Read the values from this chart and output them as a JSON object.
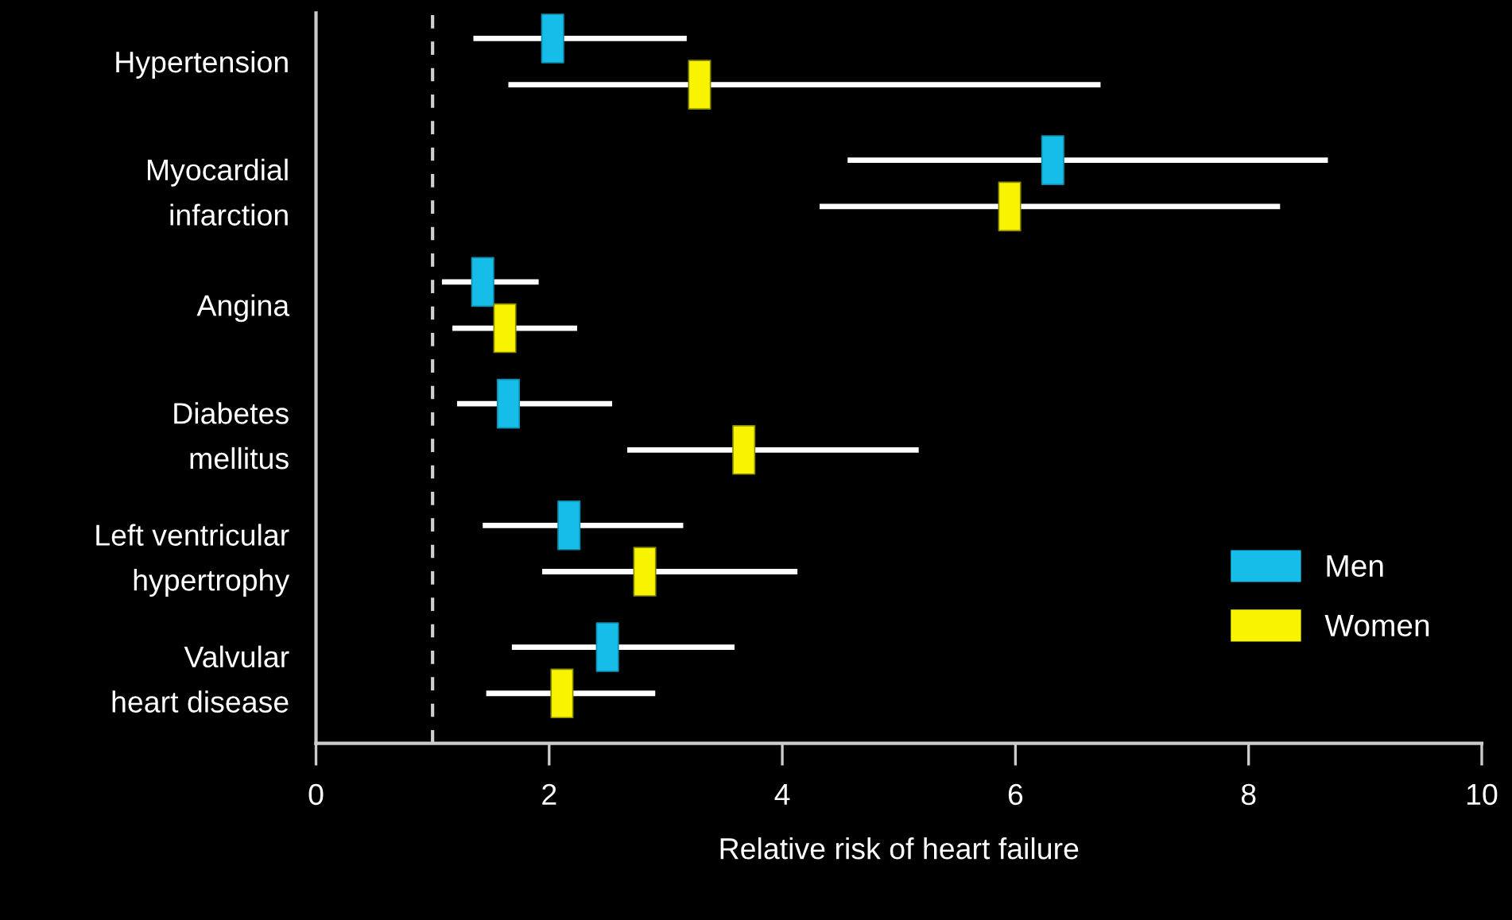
{
  "chart_data": {
    "type": "scatter",
    "orientation": "horizontal",
    "xlabel": "Relative risk of heart failure",
    "categories": [
      "Hypertension",
      "Myocardial\ninfarction",
      "Angina",
      "Diabetes\nmellitus",
      "Left ventricular\nhypertrophy",
      "Valvular\nheart disease"
    ],
    "series": [
      {
        "name": "Men",
        "color": "#16bde9",
        "values": [
          2.03,
          6.32,
          1.43,
          1.65,
          2.17,
          2.5
        ],
        "errors": [
          [
            1.35,
            3.18
          ],
          [
            4.56,
            8.68
          ],
          [
            1.08,
            1.91
          ],
          [
            1.21,
            2.54
          ],
          [
            1.43,
            3.15
          ],
          [
            1.68,
            3.59
          ]
        ]
      },
      {
        "name": "Women",
        "color": "#f8f400",
        "values": [
          3.29,
          5.95,
          1.62,
          3.67,
          2.82,
          2.11
        ],
        "errors": [
          [
            1.65,
            6.73
          ],
          [
            4.32,
            8.27
          ],
          [
            1.17,
            2.24
          ],
          [
            2.67,
            5.17
          ],
          [
            1.94,
            4.13
          ],
          [
            1.46,
            2.91
          ]
        ]
      }
    ],
    "xlim": [
      0,
      10
    ],
    "xticks": [
      0,
      2,
      4,
      6,
      8,
      10
    ],
    "ref_lines": [
      {
        "axis": "x",
        "value": 1,
        "color": "#d0d0d0",
        "line_style": "dashed"
      }
    ],
    "marker": "square",
    "legend": "bottom right",
    "grid": false
  }
}
